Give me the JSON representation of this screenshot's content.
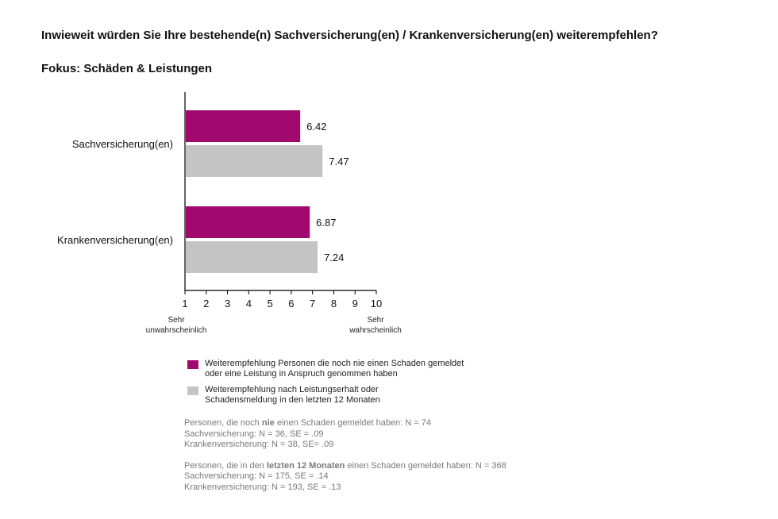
{
  "title": "Inwieweit würden Sie Ihre bestehende(n) Sachversicherung(en) / Krankenversicherung(en) weiterempfehlen?",
  "subtitle": "Fokus: Schäden & Leistungen",
  "colors": {
    "series1": "#a1096f",
    "series2": "#c4c4c4"
  },
  "chart_data": {
    "type": "bar",
    "orientation": "horizontal",
    "categories": [
      "Sachversicherung(en)",
      "Krankenversicherung(en)"
    ],
    "series": [
      {
        "name": "Weiterempfehlung Personen die noch nie einen Schaden gemeldet\noder eine Leistung in Anspruch genommen haben",
        "values": [
          6.42,
          6.87
        ]
      },
      {
        "name": "Weiterempfehlung nach Leistungserhalt oder\nSchadensmeldung in den letzten 12 Monaten",
        "values": [
          7.47,
          7.24
        ]
      }
    ],
    "value_labels": [
      [
        "6.42",
        "6.87"
      ],
      [
        "7.47",
        "7.24"
      ]
    ],
    "xlim": [
      1,
      10
    ],
    "xticks": [
      "1",
      "2",
      "3",
      "4",
      "5",
      "6",
      "7",
      "8",
      "9",
      "10"
    ],
    "x_end_labels": {
      "left": [
        "Sehr",
        "unwahrscheinlich"
      ],
      "right": [
        "Sehr",
        "wahrscheinlich"
      ]
    },
    "grid": false
  },
  "notes": {
    "block1": {
      "line1_pre": "Personen, die noch ",
      "line1_bold": "nie",
      "line1_post": " einen Schaden gemeldet haben: N = 74",
      "line2": "Sachversicherung: N = 36, SE = .09",
      "line3": "Krankenversicherung: N = 38, SE= .09"
    },
    "block2": {
      "line1_pre": "Personen, die in den ",
      "line1_bold": "letzten 12 Monaten",
      "line1_post": " einen Schaden gemeldet haben: N = 368",
      "line2": "Sachversicherung: N = 175, SE = .14",
      "line3": "Krankenversicherung: N = 193, SE = .13"
    }
  }
}
